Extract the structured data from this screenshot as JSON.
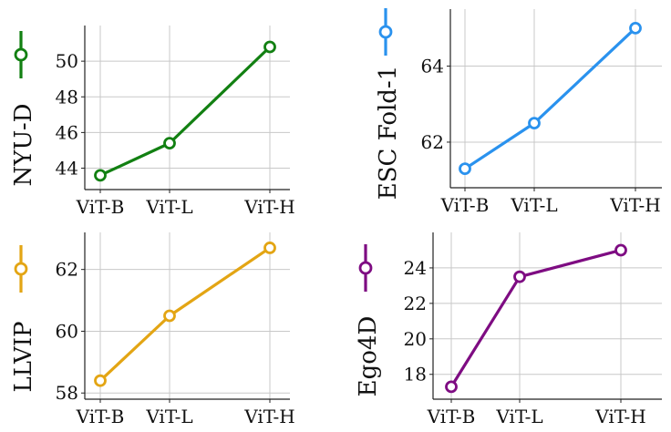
{
  "chart_data": [
    {
      "type": "line",
      "categories": [
        "ViT-B",
        "ViT-L",
        "ViT-H"
      ],
      "series": [
        {
          "name": "NYU-D",
          "values": [
            43.6,
            45.4,
            50.8
          ]
        }
      ],
      "ylabel": "NYU-D",
      "yticks": [
        44,
        46,
        48,
        50
      ],
      "ylim": [
        42.8,
        52.0
      ],
      "color": "#128012",
      "legend_placement": "left"
    },
    {
      "type": "line",
      "categories": [
        "ViT-B",
        "ViT-L",
        "ViT-H"
      ],
      "series": [
        {
          "name": "ESC Fold-1",
          "values": [
            61.3,
            62.5,
            65.0
          ]
        }
      ],
      "ylabel": "ESC Fold-1",
      "yticks": [
        62,
        64
      ],
      "ylim": [
        60.8,
        65.5
      ],
      "color": "#2a92ee",
      "legend_placement": "left"
    },
    {
      "type": "line",
      "categories": [
        "ViT-B",
        "ViT-L",
        "ViT-H"
      ],
      "series": [
        {
          "name": "LLVIP",
          "values": [
            58.4,
            60.5,
            62.7
          ]
        }
      ],
      "ylabel": "LLVIP",
      "yticks": [
        58,
        60,
        62
      ],
      "ylim": [
        57.8,
        63.2
      ],
      "color": "#e3a514",
      "legend_placement": "left"
    },
    {
      "type": "line",
      "categories": [
        "ViT-B",
        "ViT-L",
        "ViT-H"
      ],
      "series": [
        {
          "name": "Ego4D",
          "values": [
            17.3,
            23.5,
            25.0
          ]
        }
      ],
      "ylabel": "Ego4D",
      "yticks": [
        18,
        20,
        22,
        24
      ],
      "ylim": [
        16.6,
        26.0
      ],
      "color": "#7e0c82",
      "legend_placement": "left"
    }
  ]
}
